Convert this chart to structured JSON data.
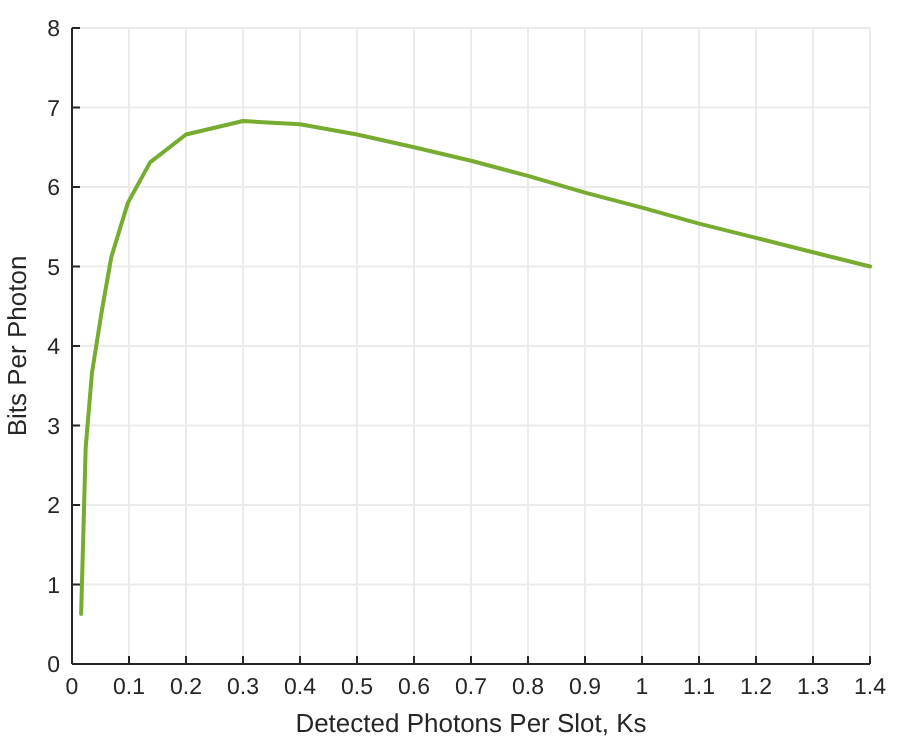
{
  "chart_data": {
    "type": "line",
    "xlabel": "Detected Photons Per Slot, Ks",
    "ylabel": "Bits Per Photon",
    "x": [
      0.016,
      0.024,
      0.035,
      0.052,
      0.069,
      0.098,
      0.137,
      0.2,
      0.3,
      0.4,
      0.5,
      0.6,
      0.7,
      0.8,
      0.9,
      1.0,
      1.1,
      1.2,
      1.3,
      1.4
    ],
    "series": [
      {
        "color": "#77ac30",
        "values": [
          0.63,
          2.72,
          3.66,
          4.43,
          5.12,
          5.8,
          6.31,
          6.66,
          6.83,
          6.79,
          6.66,
          6.5,
          6.33,
          6.14,
          5.93,
          5.74,
          5.54,
          5.36,
          5.18,
          5.0
        ]
      }
    ],
    "xlim": [
      0,
      1.4
    ],
    "xticks": [
      0,
      0.1,
      0.2,
      0.3,
      0.4,
      0.5,
      0.6,
      0.7,
      0.8,
      0.9,
      1,
      1.1,
      1.2,
      1.3,
      1.4
    ],
    "ylim": [
      0,
      8
    ],
    "yticks": [
      0,
      1,
      2,
      3,
      4,
      5,
      6,
      7,
      8
    ],
    "grid": true,
    "line_style": "solid",
    "marker": "none"
  }
}
